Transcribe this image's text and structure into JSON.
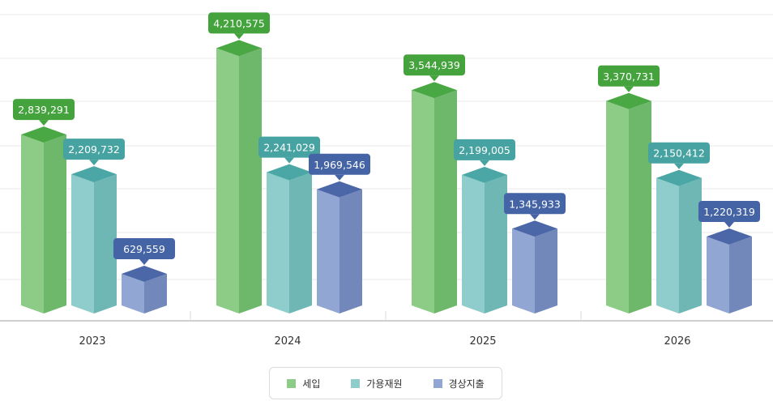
{
  "chart_data": {
    "type": "bar",
    "categories": [
      "2023",
      "2024",
      "2025",
      "2026"
    ],
    "series": [
      {
        "name": "세입",
        "values": [
          2839291,
          4210575,
          3544939,
          3370731
        ],
        "labels": [
          "2,839,291",
          "4,210,575",
          "3,544,939",
          "3,370,731"
        ],
        "color": "#8ccc86",
        "side_color": "#6db86a",
        "top_color": "#4aa844",
        "callout_color": "#44a33c"
      },
      {
        "name": "가용재원",
        "values": [
          2209732,
          2241029,
          2199005,
          2150412
        ],
        "labels": [
          "2,209,732",
          "2,241,029",
          "2,199,005",
          "2,150,412"
        ],
        "color": "#8ecdcc",
        "side_color": "#6fb7b5",
        "top_color": "#4aa7a6",
        "callout_color": "#46a3a1"
      },
      {
        "name": "경상지출",
        "values": [
          629559,
          1969546,
          1345933,
          1220319
        ],
        "labels": [
          "629,559",
          "1,969,546",
          "1,345,933",
          "1,220,319"
        ],
        "color": "#91a6d2",
        "side_color": "#7288ba",
        "top_color": "#4c67a8",
        "callout_color": "#4564a6"
      }
    ],
    "ylim": [
      0,
      4500000
    ],
    "grid": true,
    "legend_position": "bottom-center"
  }
}
